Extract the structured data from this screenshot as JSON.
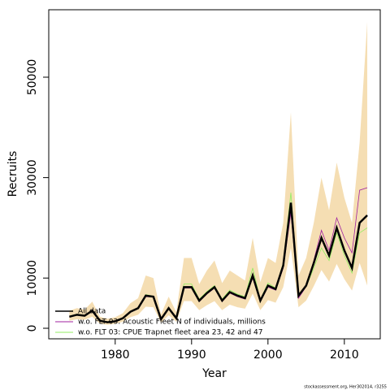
{
  "chart_data": {
    "type": "line",
    "xlabel": "Year",
    "ylabel": "Recruits",
    "note": "stockassessment.org, Her302014, r3255",
    "x": [
      1974,
      1975,
      1976,
      1977,
      1978,
      1979,
      1980,
      1981,
      1982,
      1983,
      1984,
      1985,
      1986,
      1987,
      1988,
      1989,
      1990,
      1991,
      1992,
      1993,
      1994,
      1995,
      1996,
      1997,
      1998,
      1999,
      2000,
      2001,
      2002,
      2003,
      2004,
      2005,
      2006,
      2007,
      2008,
      2009,
      2010,
      2011,
      2012,
      2013
    ],
    "interval": {
      "color": "#f5deb3",
      "lower": [
        1500,
        1800,
        1700,
        2300,
        900,
        700,
        900,
        1300,
        2200,
        2700,
        4300,
        4200,
        1100,
        2600,
        1300,
        5400,
        5400,
        3600,
        4600,
        5400,
        3600,
        4700,
        4200,
        3900,
        6900,
        3600,
        5600,
        5100,
        8200,
        16000,
        4200,
        5500,
        8400,
        11600,
        9300,
        12800,
        9800,
        7500,
        13000,
        8500
      ],
      "upper": [
        3500,
        4000,
        3700,
        5300,
        2300,
        1900,
        2200,
        3000,
        5000,
        6000,
        10500,
        10000,
        2800,
        6300,
        3200,
        14000,
        14000,
        8800,
        11500,
        13500,
        9000,
        11500,
        10500,
        9500,
        18000,
        9200,
        14000,
        13000,
        21000,
        43000,
        10500,
        14000,
        21000,
        30000,
        23500,
        33000,
        26000,
        21000,
        37000,
        61000
      ]
    },
    "series": [
      {
        "name": "All data",
        "color": "#000000",
        "values": [
          2300,
          2700,
          2500,
          3500,
          1500,
          1200,
          1400,
          2000,
          3300,
          4000,
          6500,
          6300,
          1800,
          4000,
          2000,
          8200,
          8200,
          5500,
          7000,
          8200,
          5500,
          7200,
          6500,
          6000,
          10500,
          5500,
          8500,
          7800,
          12500,
          25000,
          6500,
          8500,
          13000,
          18000,
          14500,
          20000,
          15500,
          12000,
          21000,
          22500
        ]
      },
      {
        "name": "w.o. FLT 03: Acoustic Fleet   N of individuals, millions",
        "color": "#a020a0",
        "values": [
          2200,
          2600,
          2400,
          3400,
          1400,
          1100,
          1300,
          1900,
          3200,
          3900,
          6300,
          6200,
          1700,
          3900,
          1900,
          8000,
          8000,
          5300,
          6800,
          8000,
          5300,
          7000,
          6300,
          5800,
          10000,
          5300,
          8200,
          7600,
          12000,
          23000,
          6000,
          8300,
          13500,
          19500,
          15500,
          22000,
          18000,
          15000,
          27500,
          28000
        ]
      },
      {
        "name": "w.o. FLT 03: CPUE Trapnet fleet area 23, 42 and 47",
        "color": "#90ee60",
        "values": [
          2400,
          2800,
          2600,
          3600,
          1600,
          1300,
          1500,
          2100,
          3400,
          4100,
          6700,
          6400,
          1900,
          4100,
          2100,
          8800,
          8800,
          5800,
          7300,
          8500,
          5800,
          7600,
          6800,
          6300,
          12000,
          5700,
          9000,
          8000,
          13000,
          27000,
          6800,
          8300,
          12000,
          16000,
          13500,
          19000,
          14500,
          11000,
          19000,
          20000
        ]
      }
    ],
    "xlim": [
      1971.3,
      2014.7
    ],
    "xticks": [
      1980,
      1990,
      2000,
      2010
    ],
    "ylim": [
      -2100,
      63430
    ],
    "yticks": [
      0,
      10000,
      30000,
      50000
    ]
  }
}
